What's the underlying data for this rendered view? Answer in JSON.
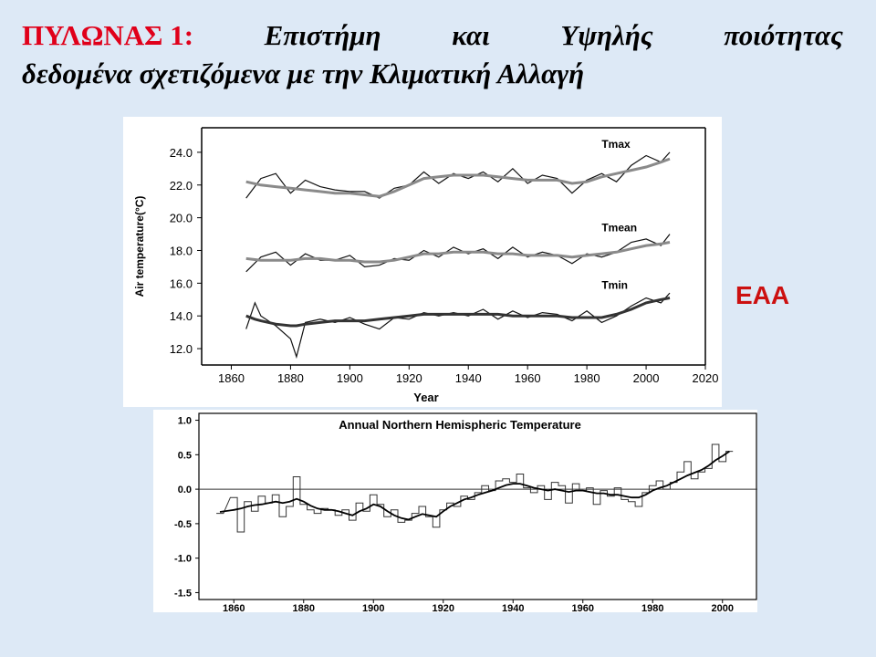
{
  "slide": {
    "title_prefix": "ΠΥΛΩΝΑΣ 1:",
    "title_words": [
      "Επιστήμη",
      "και",
      "Υψηλής",
      "ποιότητας"
    ],
    "title_line2": "δεδομένα σχετιζόμενα με την Κλιματική Αλλαγή",
    "org_label": "ΕΑΑ"
  },
  "chart_data": [
    {
      "type": "line",
      "title": "",
      "xlabel": "Year",
      "ylabel": "Air temperature(°C)",
      "xlim": [
        1850,
        2020
      ],
      "ylim": [
        11,
        25.5
      ],
      "xticks": [
        "1860",
        "1880",
        "1900",
        "1920",
        "1940",
        "1960",
        "1980",
        "2000",
        "2020"
      ],
      "yticks": [
        "12.0",
        "14.0",
        "16.0",
        "18.0",
        "20.0",
        "22.0",
        "24.0"
      ],
      "grid": false,
      "series": [
        {
          "name": "Tmax",
          "x": [
            1865,
            1870,
            1875,
            1880,
            1885,
            1890,
            1895,
            1900,
            1905,
            1910,
            1915,
            1920,
            1925,
            1930,
            1935,
            1940,
            1945,
            1950,
            1955,
            1960,
            1965,
            1970,
            1975,
            1980,
            1985,
            1990,
            1995,
            2000,
            2005,
            2008
          ],
          "y": [
            21.2,
            22.4,
            22.7,
            21.5,
            22.3,
            21.9,
            21.7,
            21.6,
            21.6,
            21.2,
            21.8,
            22.0,
            22.8,
            22.1,
            22.7,
            22.4,
            22.8,
            22.2,
            23.0,
            22.1,
            22.6,
            22.4,
            21.5,
            22.3,
            22.7,
            22.2,
            23.2,
            23.8,
            23.4,
            24.0
          ],
          "smooth": [
            22.2,
            22.0,
            21.9,
            21.8,
            21.7,
            21.6,
            21.5,
            21.5,
            21.4,
            21.3,
            21.6,
            22.0,
            22.4,
            22.5,
            22.6,
            22.6,
            22.6,
            22.5,
            22.4,
            22.3,
            22.3,
            22.3,
            22.1,
            22.2,
            22.5,
            22.7,
            22.9,
            23.1,
            23.4,
            23.6
          ]
        },
        {
          "name": "Tmean",
          "x": [
            1865,
            1870,
            1875,
            1880,
            1885,
            1890,
            1895,
            1900,
            1905,
            1910,
            1915,
            1920,
            1925,
            1930,
            1935,
            1940,
            1945,
            1950,
            1955,
            1960,
            1965,
            1970,
            1975,
            1980,
            1985,
            1990,
            1995,
            2000,
            2005,
            2008
          ],
          "y": [
            16.7,
            17.6,
            17.9,
            17.1,
            17.8,
            17.4,
            17.4,
            17.7,
            17.0,
            17.1,
            17.5,
            17.4,
            18.0,
            17.6,
            18.2,
            17.8,
            18.1,
            17.5,
            18.2,
            17.6,
            17.9,
            17.7,
            17.2,
            17.8,
            17.6,
            17.9,
            18.5,
            18.7,
            18.3,
            19.0
          ],
          "smooth": [
            17.5,
            17.4,
            17.4,
            17.4,
            17.5,
            17.5,
            17.4,
            17.4,
            17.3,
            17.3,
            17.4,
            17.6,
            17.8,
            17.8,
            17.9,
            17.9,
            17.9,
            17.8,
            17.8,
            17.7,
            17.7,
            17.7,
            17.6,
            17.7,
            17.8,
            17.9,
            18.1,
            18.3,
            18.4,
            18.5
          ]
        },
        {
          "name": "Tmin",
          "x": [
            1865,
            1868,
            1870,
            1875,
            1880,
            1882,
            1885,
            1890,
            1895,
            1900,
            1905,
            1910,
            1915,
            1920,
            1925,
            1930,
            1935,
            1940,
            1945,
            1950,
            1955,
            1960,
            1965,
            1970,
            1975,
            1980,
            1985,
            1990,
            1995,
            2000,
            2005,
            2008
          ],
          "y": [
            13.2,
            14.8,
            14.0,
            13.4,
            12.6,
            11.5,
            13.6,
            13.8,
            13.6,
            13.9,
            13.5,
            13.2,
            13.9,
            13.8,
            14.2,
            14.0,
            14.2,
            14.0,
            14.4,
            13.8,
            14.3,
            13.9,
            14.2,
            14.1,
            13.7,
            14.3,
            13.6,
            14.0,
            14.6,
            15.1,
            14.8,
            15.4
          ],
          "smooth": [
            14.0,
            13.8,
            13.7,
            13.5,
            13.4,
            13.4,
            13.5,
            13.6,
            13.7,
            13.7,
            13.7,
            13.8,
            13.9,
            14.0,
            14.1,
            14.1,
            14.1,
            14.1,
            14.1,
            14.1,
            14.0,
            14.0,
            14.0,
            14.0,
            13.9,
            13.9,
            13.9,
            14.1,
            14.4,
            14.8,
            15.0,
            15.1
          ]
        }
      ]
    },
    {
      "type": "line",
      "title": "Annual Northern Hemispheric Temperature",
      "xlabel": "",
      "ylabel": "",
      "xlim": [
        1850,
        2010
      ],
      "ylim": [
        -1.6,
        1.1
      ],
      "xticks": [
        "1860",
        "1880",
        "1900",
        "1920",
        "1940",
        "1960",
        "1980",
        "2000"
      ],
      "yticks": [
        "1.0",
        "0.5",
        "0.0",
        "-0.5",
        "-1.0",
        "-1.5"
      ],
      "reference_line": 0.0,
      "grid": false,
      "series": [
        {
          "name": "",
          "x": [
            1856,
            1860,
            1862,
            1864,
            1866,
            1868,
            1870,
            1872,
            1874,
            1876,
            1878,
            1880,
            1882,
            1884,
            1886,
            1888,
            1890,
            1892,
            1894,
            1896,
            1898,
            1900,
            1902,
            1904,
            1906,
            1908,
            1910,
            1912,
            1914,
            1916,
            1918,
            1920,
            1922,
            1924,
            1926,
            1928,
            1930,
            1932,
            1934,
            1936,
            1938,
            1940,
            1942,
            1944,
            1946,
            1948,
            1950,
            1952,
            1954,
            1956,
            1958,
            1960,
            1962,
            1964,
            1966,
            1968,
            1970,
            1972,
            1974,
            1976,
            1978,
            1980,
            1982,
            1984,
            1986,
            1988,
            1990,
            1992,
            1994,
            1996,
            1998,
            2000,
            2002
          ],
          "y": [
            -0.35,
            -0.12,
            -0.62,
            -0.18,
            -0.32,
            -0.1,
            -0.2,
            -0.08,
            -0.4,
            -0.25,
            0.18,
            -0.22,
            -0.3,
            -0.35,
            -0.28,
            -0.3,
            -0.38,
            -0.3,
            -0.45,
            -0.2,
            -0.32,
            -0.08,
            -0.22,
            -0.4,
            -0.3,
            -0.48,
            -0.45,
            -0.35,
            -0.25,
            -0.4,
            -0.55,
            -0.3,
            -0.2,
            -0.25,
            -0.1,
            -0.15,
            -0.05,
            0.05,
            -0.02,
            0.12,
            0.15,
            0.1,
            0.22,
            0.02,
            -0.05,
            0.05,
            -0.15,
            0.1,
            0.05,
            -0.2,
            0.08,
            -0.02,
            0.02,
            -0.22,
            -0.02,
            -0.1,
            0.02,
            -0.15,
            -0.18,
            -0.25,
            -0.05,
            0.05,
            0.12,
            0.0,
            0.1,
            0.25,
            0.4,
            0.15,
            0.25,
            0.3,
            0.65,
            0.4,
            0.55
          ],
          "smooth": [
            -0.33,
            -0.3,
            -0.28,
            -0.25,
            -0.23,
            -0.22,
            -0.2,
            -0.18,
            -0.2,
            -0.18,
            -0.14,
            -0.18,
            -0.24,
            -0.28,
            -0.3,
            -0.3,
            -0.32,
            -0.35,
            -0.38,
            -0.32,
            -0.28,
            -0.22,
            -0.25,
            -0.32,
            -0.38,
            -0.42,
            -0.44,
            -0.4,
            -0.36,
            -0.38,
            -0.4,
            -0.32,
            -0.25,
            -0.2,
            -0.15,
            -0.12,
            -0.08,
            -0.05,
            -0.02,
            0.02,
            0.06,
            0.08,
            0.08,
            0.05,
            0.02,
            0.0,
            -0.02,
            0.0,
            -0.02,
            -0.04,
            -0.02,
            -0.02,
            -0.04,
            -0.06,
            -0.06,
            -0.08,
            -0.08,
            -0.1,
            -0.12,
            -0.12,
            -0.08,
            -0.02,
            0.02,
            0.05,
            0.1,
            0.15,
            0.2,
            0.24,
            0.28,
            0.34,
            0.42,
            0.48,
            0.55
          ]
        }
      ]
    }
  ]
}
